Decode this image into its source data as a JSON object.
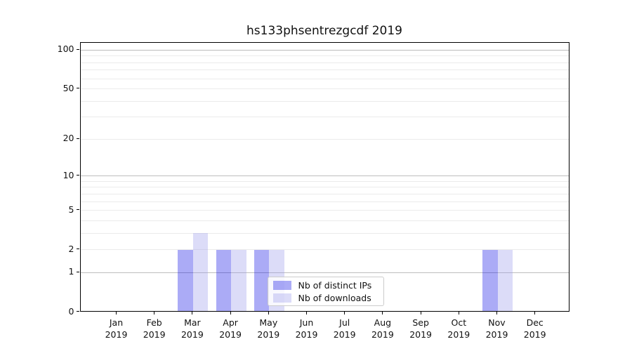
{
  "chart_data": {
    "type": "bar",
    "title": "hs133phsentrezgcdf 2019",
    "x_axis": {
      "months": [
        "Jan",
        "Feb",
        "Mar",
        "Apr",
        "May",
        "Jun",
        "Jul",
        "Aug",
        "Sep",
        "Oct",
        "Nov",
        "Dec"
      ],
      "year": "2019"
    },
    "y_axis": {
      "scale": "log10(1+y)",
      "ticks": [
        0,
        1,
        2,
        5,
        10,
        20,
        50,
        100
      ],
      "major_gridlines": [
        1,
        10,
        100
      ],
      "minor_gridlines": [
        2,
        3,
        4,
        5,
        6,
        7,
        8,
        9,
        20,
        30,
        40,
        50,
        60,
        70,
        80,
        90
      ],
      "ylim": [
        0,
        114
      ]
    },
    "series": [
      {
        "name": "Nb of distinct IPs",
        "color_hex": "#abaaf6",
        "fill_rgba": "rgba(15,15,229,0.35)",
        "values": [
          0,
          0,
          2,
          2,
          2,
          0,
          0,
          0,
          0,
          0,
          2,
          0
        ]
      },
      {
        "name": "Nb of downloads",
        "color_hex": "#dcdcf8",
        "fill_rgba": "rgba(155,155,235,0.35)",
        "values": [
          0,
          0,
          3,
          2,
          2,
          0,
          0,
          0,
          0,
          0,
          2,
          0
        ]
      }
    ],
    "legend_position": "lower-center",
    "grid": true,
    "colors": {
      "grid_major": "#bdbdbd",
      "grid_minor": "#ebebeb",
      "axis": "#000000",
      "background": "#ffffff"
    }
  }
}
